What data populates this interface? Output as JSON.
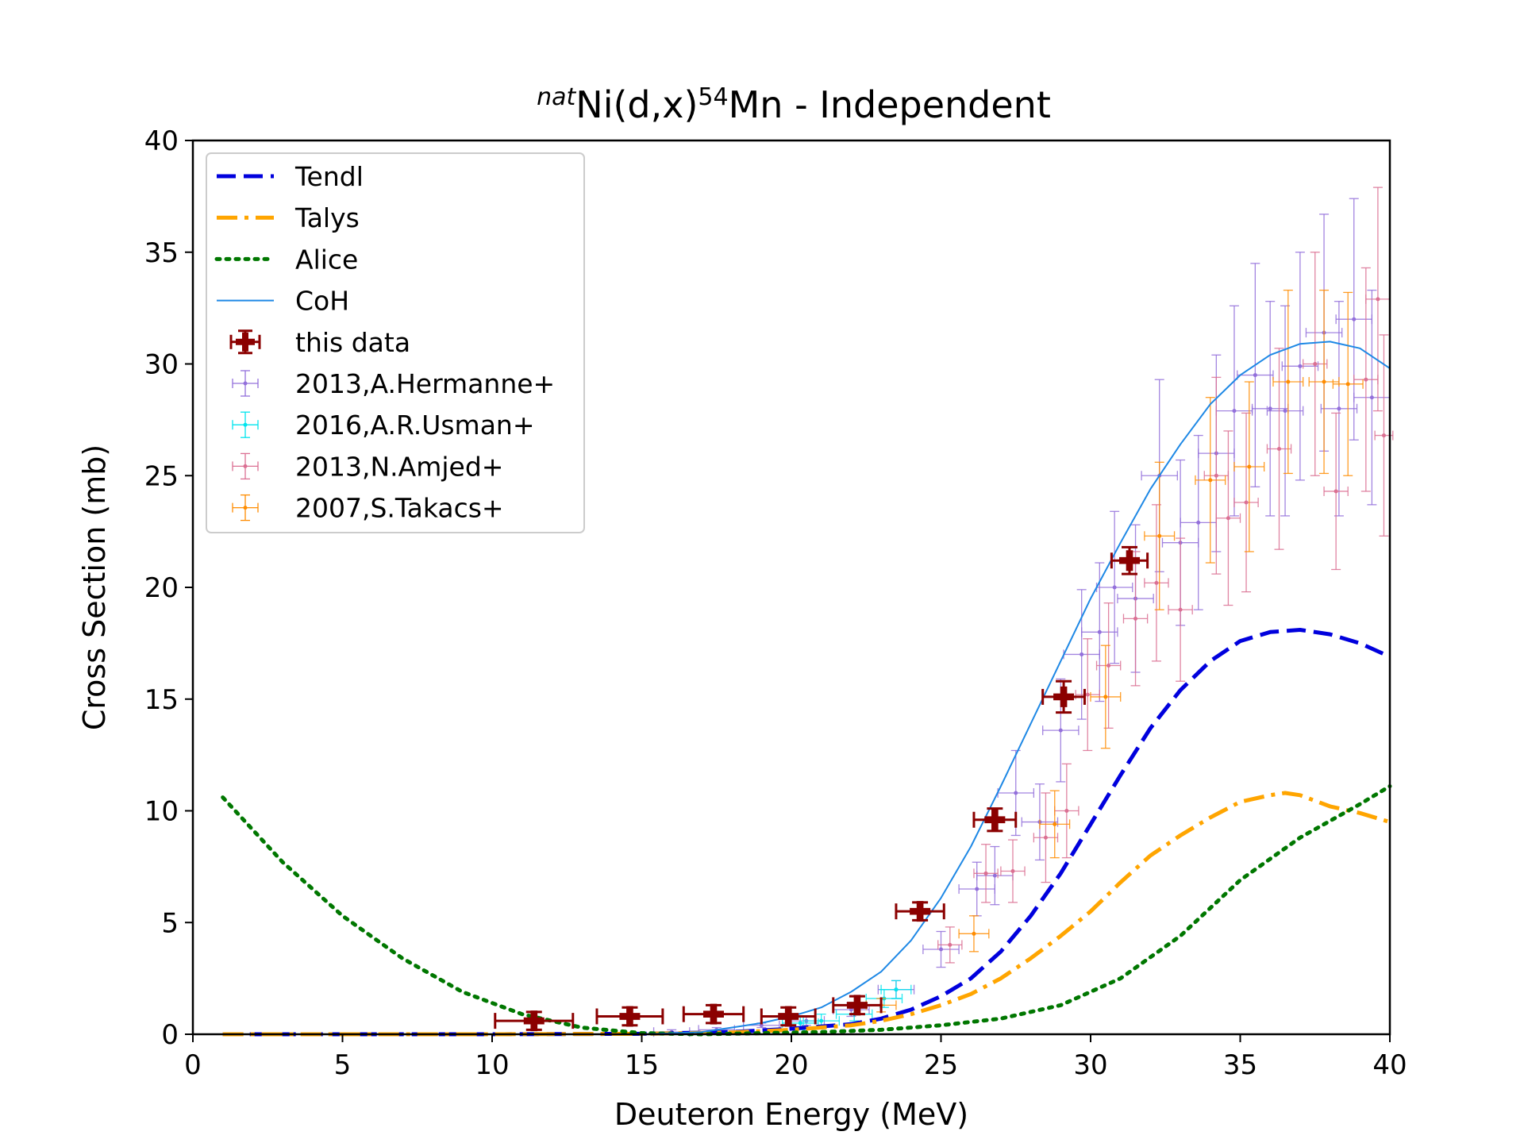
{
  "chart_data": {
    "type": "scatter",
    "title_prefix": "nat",
    "title_main": "Ni(d,x)",
    "title_sup": "54",
    "title_suffix": "Mn - Independent",
    "xlabel": "Deuteron Energy (MeV)",
    "ylabel": "Cross Section (mb)",
    "xlim": [
      0,
      40
    ],
    "ylim": [
      0,
      40
    ],
    "xticks": [
      "0",
      "5",
      "10",
      "15",
      "20",
      "25",
      "30",
      "35",
      "40"
    ],
    "yticks": [
      "0",
      "5",
      "10",
      "15",
      "20",
      "25",
      "30",
      "35",
      "40"
    ],
    "grid": false,
    "legend_position": "upper-left",
    "curves": [
      {
        "name": "Tendl",
        "color": "#0000dd",
        "style": "dashed",
        "x": [
          1,
          5,
          10,
          15,
          18,
          20,
          22,
          23,
          24,
          25,
          26,
          27,
          28,
          29,
          30,
          31,
          32,
          33,
          34,
          35,
          36,
          37,
          38,
          39,
          40
        ],
        "y": [
          0,
          0,
          0,
          0.02,
          0.1,
          0.25,
          0.45,
          0.7,
          1.1,
          1.7,
          2.5,
          3.7,
          5.3,
          7.2,
          9.4,
          11.6,
          13.7,
          15.4,
          16.7,
          17.6,
          18.0,
          18.1,
          17.9,
          17.5,
          16.9
        ]
      },
      {
        "name": "Talys",
        "color": "#ffa500",
        "style": "dashdot",
        "x": [
          1,
          5,
          10,
          15,
          18,
          20,
          22,
          23,
          24,
          25,
          26,
          27,
          28,
          29,
          30,
          31,
          32,
          33,
          34,
          35,
          36,
          36.5,
          37,
          38,
          39,
          40
        ],
        "y": [
          0,
          0,
          0,
          0.02,
          0.08,
          0.2,
          0.4,
          0.6,
          0.9,
          1.3,
          1.8,
          2.5,
          3.4,
          4.4,
          5.5,
          6.8,
          8.0,
          8.9,
          9.7,
          10.4,
          10.7,
          10.8,
          10.7,
          10.2,
          9.9,
          9.5
        ]
      },
      {
        "name": "Alice",
        "color": "#007700",
        "style": "dotted",
        "x": [
          1,
          3,
          5,
          7,
          9,
          11,
          13,
          15,
          17,
          19,
          21,
          23,
          25,
          27,
          29,
          31,
          33,
          35,
          37,
          39,
          40
        ],
        "y": [
          10.6,
          7.7,
          5.3,
          3.4,
          1.9,
          0.9,
          0.3,
          0.05,
          0.0,
          0.05,
          0.1,
          0.2,
          0.4,
          0.7,
          1.3,
          2.5,
          4.4,
          6.9,
          8.8,
          10.3,
          11.1
        ]
      },
      {
        "name": "CoH",
        "color": "#1e88e5",
        "style": "solid",
        "x": [
          15,
          17,
          18,
          19,
          20,
          21,
          22,
          23,
          24,
          25,
          26,
          27,
          28,
          29,
          30,
          31,
          32,
          33,
          34,
          35,
          36,
          37,
          38,
          39,
          40
        ],
        "y": [
          0,
          0.1,
          0.3,
          0.5,
          0.8,
          1.2,
          1.9,
          2.8,
          4.2,
          6.1,
          8.4,
          11.1,
          13.9,
          16.7,
          19.5,
          22.0,
          24.4,
          26.4,
          28.2,
          29.5,
          30.4,
          30.9,
          31.0,
          30.7,
          29.8
        ]
      }
    ],
    "this_data": {
      "name": "this data",
      "color": "#8b0000",
      "points": [
        {
          "x": 11.4,
          "y": 0.6,
          "xerr": 1.3,
          "yerr": 0.4
        },
        {
          "x": 14.6,
          "y": 0.8,
          "xerr": 1.1,
          "yerr": 0.4
        },
        {
          "x": 17.4,
          "y": 0.9,
          "xerr": 1.0,
          "yerr": 0.4
        },
        {
          "x": 19.9,
          "y": 0.8,
          "xerr": 0.9,
          "yerr": 0.4
        },
        {
          "x": 22.2,
          "y": 1.3,
          "xerr": 0.8,
          "yerr": 0.4
        },
        {
          "x": 24.3,
          "y": 5.5,
          "xerr": 0.8,
          "yerr": 0.4
        },
        {
          "x": 26.8,
          "y": 9.6,
          "xerr": 0.7,
          "yerr": 0.5
        },
        {
          "x": 29.1,
          "y": 15.1,
          "xerr": 0.7,
          "yerr": 0.7
        },
        {
          "x": 31.3,
          "y": 21.2,
          "xerr": 0.6,
          "yerr": 0.6
        }
      ]
    },
    "datasets": [
      {
        "name": "2013,A.Hermanne+",
        "color": "#9370db",
        "points": [
          {
            "x": 16.0,
            "y": 0.1,
            "xerr": 0.6,
            "yerr": 0.1
          },
          {
            "x": 17.5,
            "y": 0.2,
            "xerr": 0.6,
            "yerr": 0.1
          },
          {
            "x": 19.0,
            "y": 0.4,
            "xerr": 0.6,
            "yerr": 0.1
          },
          {
            "x": 20.5,
            "y": 0.6,
            "xerr": 0.6,
            "yerr": 0.2
          },
          {
            "x": 22.0,
            "y": 1.1,
            "xerr": 0.6,
            "yerr": 0.3
          },
          {
            "x": 23.5,
            "y": 2.0,
            "xerr": 0.6,
            "yerr": 0.4
          },
          {
            "x": 25.0,
            "y": 3.8,
            "xerr": 0.6,
            "yerr": 0.8
          },
          {
            "x": 26.2,
            "y": 6.5,
            "xerr": 0.6,
            "yerr": 1.2
          },
          {
            "x": 26.8,
            "y": 7.1,
            "xerr": 0.6,
            "yerr": 1.3
          },
          {
            "x": 27.5,
            "y": 10.8,
            "xerr": 0.6,
            "yerr": 1.9
          },
          {
            "x": 28.3,
            "y": 9.5,
            "xerr": 0.6,
            "yerr": 1.7
          },
          {
            "x": 29.0,
            "y": 13.6,
            "xerr": 0.6,
            "yerr": 2.3
          },
          {
            "x": 29.7,
            "y": 17.0,
            "xerr": 0.6,
            "yerr": 2.9
          },
          {
            "x": 30.3,
            "y": 18.0,
            "xerr": 0.6,
            "yerr": 3.1
          },
          {
            "x": 30.8,
            "y": 20.0,
            "xerr": 0.6,
            "yerr": 3.4
          },
          {
            "x": 31.5,
            "y": 19.5,
            "xerr": 0.6,
            "yerr": 3.3
          },
          {
            "x": 32.3,
            "y": 25.0,
            "xerr": 0.6,
            "yerr": 4.3
          },
          {
            "x": 33.0,
            "y": 22.0,
            "xerr": 0.6,
            "yerr": 3.7
          },
          {
            "x": 33.6,
            "y": 22.9,
            "xerr": 0.6,
            "yerr": 3.9
          },
          {
            "x": 34.2,
            "y": 26.0,
            "xerr": 0.6,
            "yerr": 4.4
          },
          {
            "x": 34.8,
            "y": 27.9,
            "xerr": 0.6,
            "yerr": 4.7
          },
          {
            "x": 35.5,
            "y": 29.5,
            "xerr": 0.6,
            "yerr": 5.0
          },
          {
            "x": 36.0,
            "y": 28.0,
            "xerr": 0.6,
            "yerr": 4.8
          },
          {
            "x": 36.5,
            "y": 27.9,
            "xerr": 0.6,
            "yerr": 4.7
          },
          {
            "x": 37.0,
            "y": 29.9,
            "xerr": 0.6,
            "yerr": 5.1
          },
          {
            "x": 37.8,
            "y": 31.4,
            "xerr": 0.6,
            "yerr": 5.3
          },
          {
            "x": 38.3,
            "y": 28.0,
            "xerr": 0.6,
            "yerr": 4.8
          },
          {
            "x": 38.8,
            "y": 32.0,
            "xerr": 0.6,
            "yerr": 5.4
          },
          {
            "x": 39.4,
            "y": 28.5,
            "xerr": 0.6,
            "yerr": 4.8
          }
        ]
      },
      {
        "name": "2016,A.R.Usman+",
        "color": "#00e5ee",
        "points": [
          {
            "x": 20.3,
            "y": 0.5,
            "xerr": 0.6,
            "yerr": 0.3
          },
          {
            "x": 21.0,
            "y": 0.6,
            "xerr": 0.6,
            "yerr": 0.3
          },
          {
            "x": 22.1,
            "y": 0.9,
            "xerr": 0.6,
            "yerr": 0.3
          },
          {
            "x": 23.1,
            "y": 1.6,
            "xerr": 0.6,
            "yerr": 0.4
          },
          {
            "x": 23.5,
            "y": 2.0,
            "xerr": 0.5,
            "yerr": 0.4
          }
        ]
      },
      {
        "name": "2013,N.Amjed+",
        "color": "#db7093",
        "points": [
          {
            "x": 25.3,
            "y": 4.0,
            "xerr": 0.4,
            "yerr": 0.8
          },
          {
            "x": 26.5,
            "y": 7.2,
            "xerr": 0.4,
            "yerr": 1.3
          },
          {
            "x": 27.4,
            "y": 7.3,
            "xerr": 0.4,
            "yerr": 1.4
          },
          {
            "x": 28.5,
            "y": 8.8,
            "xerr": 0.4,
            "yerr": 2.0
          },
          {
            "x": 29.2,
            "y": 10.0,
            "xerr": 0.4,
            "yerr": 2.1
          },
          {
            "x": 29.9,
            "y": 15.2,
            "xerr": 0.4,
            "yerr": 2.5
          },
          {
            "x": 30.6,
            "y": 16.5,
            "xerr": 0.4,
            "yerr": 2.8
          },
          {
            "x": 31.5,
            "y": 18.6,
            "xerr": 0.4,
            "yerr": 3.0
          },
          {
            "x": 32.2,
            "y": 20.2,
            "xerr": 0.4,
            "yerr": 3.5
          },
          {
            "x": 33.0,
            "y": 19.0,
            "xerr": 0.4,
            "yerr": 3.2
          },
          {
            "x": 34.2,
            "y": 25.0,
            "xerr": 0.4,
            "yerr": 4.4
          },
          {
            "x": 34.6,
            "y": 23.1,
            "xerr": 0.4,
            "yerr": 3.9
          },
          {
            "x": 35.2,
            "y": 23.8,
            "xerr": 0.4,
            "yerr": 4.0
          },
          {
            "x": 36.3,
            "y": 26.2,
            "xerr": 0.4,
            "yerr": 4.5
          },
          {
            "x": 37.5,
            "y": 30.0,
            "xerr": 0.4,
            "yerr": 5.0
          },
          {
            "x": 38.2,
            "y": 24.3,
            "xerr": 0.4,
            "yerr": 3.5
          },
          {
            "x": 39.2,
            "y": 29.3,
            "xerr": 0.4,
            "yerr": 5.0
          },
          {
            "x": 39.6,
            "y": 32.9,
            "xerr": 0.4,
            "yerr": 5.0
          },
          {
            "x": 39.8,
            "y": 26.8,
            "xerr": 0.3,
            "yerr": 4.5
          }
        ]
      },
      {
        "name": "2007,S.Takacs+",
        "color": "#ff8c00",
        "points": [
          {
            "x": 23.0,
            "y": 1.3,
            "xerr": 0.5,
            "yerr": 0.3
          },
          {
            "x": 26.1,
            "y": 4.5,
            "xerr": 0.5,
            "yerr": 0.8
          },
          {
            "x": 28.8,
            "y": 9.4,
            "xerr": 0.5,
            "yerr": 1.5
          },
          {
            "x": 30.5,
            "y": 15.1,
            "xerr": 0.5,
            "yerr": 2.3
          },
          {
            "x": 32.3,
            "y": 22.3,
            "xerr": 0.5,
            "yerr": 3.3
          },
          {
            "x": 34.0,
            "y": 24.8,
            "xerr": 0.5,
            "yerr": 3.7
          },
          {
            "x": 35.3,
            "y": 25.4,
            "xerr": 0.5,
            "yerr": 3.8
          },
          {
            "x": 36.6,
            "y": 29.2,
            "xerr": 0.5,
            "yerr": 4.1
          },
          {
            "x": 37.8,
            "y": 29.2,
            "xerr": 0.5,
            "yerr": 4.1
          },
          {
            "x": 38.6,
            "y": 29.1,
            "xerr": 0.5,
            "yerr": 4.1
          }
        ]
      }
    ]
  }
}
